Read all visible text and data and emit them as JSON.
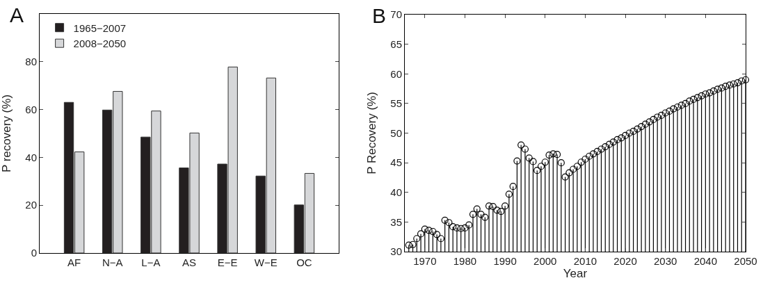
{
  "chart_data": [
    {
      "type": "bar",
      "annotations": [
        "A"
      ],
      "ylabel": "P recovery (%)",
      "categories": [
        "AF",
        "N−A",
        "L−A",
        "AS",
        "E−E",
        "W−E",
        "OC"
      ],
      "series": [
        {
          "name": "1965−2007",
          "color": "#231f20",
          "values": [
            63.0,
            59.8,
            48.5,
            35.6,
            37.2,
            32.2,
            20.1
          ]
        },
        {
          "name": "2008−2050",
          "color": "#d6d7d9",
          "values": [
            42.3,
            67.6,
            59.4,
            50.2,
            77.8,
            73.2,
            33.3
          ]
        }
      ],
      "ylim": [
        0,
        100
      ],
      "yticks": [
        0,
        20,
        40,
        60,
        80
      ],
      "grid": false,
      "legend": "top left"
    },
    {
      "type": "lollipop",
      "annotations": [
        "B"
      ],
      "xlabel": "Year",
      "ylabel": "P Recovery (%)",
      "x": [
        1966,
        1967,
        1968,
        1969,
        1970,
        1971,
        1972,
        1973,
        1974,
        1975,
        1976,
        1977,
        1978,
        1979,
        1980,
        1981,
        1982,
        1983,
        1984,
        1985,
        1986,
        1987,
        1988,
        1989,
        1990,
        1991,
        1992,
        1993,
        1994,
        1995,
        1996,
        1997,
        1998,
        1999,
        2000,
        2001,
        2002,
        2003,
        2004,
        2005,
        2006,
        2007,
        2008,
        2009,
        2010,
        2011,
        2012,
        2013,
        2014,
        2015,
        2016,
        2017,
        2018,
        2019,
        2020,
        2021,
        2022,
        2023,
        2024,
        2025,
        2026,
        2027,
        2028,
        2029,
        2030,
        2031,
        2032,
        2033,
        2034,
        2035,
        2036,
        2037,
        2038,
        2039,
        2040,
        2041,
        2042,
        2043,
        2044,
        2045,
        2046,
        2047,
        2048,
        2049,
        2050
      ],
      "series": [
        {
          "color": "#000000",
          "values": [
            31.1,
            31.2,
            32.2,
            33.0,
            33.8,
            33.6,
            33.4,
            32.9,
            32.2,
            35.3,
            34.9,
            34.2,
            34.0,
            33.9,
            34.0,
            34.5,
            36.3,
            37.2,
            36.3,
            35.8,
            37.7,
            37.6,
            37.0,
            36.8,
            37.7,
            39.7,
            41.0,
            45.3,
            48.0,
            47.3,
            45.8,
            45.2,
            43.7,
            44.4,
            45.1,
            46.3,
            46.5,
            46.4,
            45.0,
            42.6,
            43.3,
            43.9,
            44.4,
            45.1,
            45.6,
            46.1,
            46.5,
            46.9,
            47.3,
            47.7,
            48.1,
            48.5,
            48.9,
            49.2,
            49.6,
            50.0,
            50.3,
            50.7,
            51.1,
            51.5,
            51.9,
            52.3,
            52.7,
            53.0,
            53.4,
            53.7,
            54.1,
            54.4,
            54.7,
            55.0,
            55.4,
            55.7,
            56.0,
            56.3,
            56.6,
            56.8,
            57.1,
            57.4,
            57.6,
            57.9,
            58.1,
            58.3,
            58.5,
            58.8,
            59.0
          ]
        }
      ],
      "xlim": [
        1965,
        2050
      ],
      "xticks": [
        1970,
        1980,
        1990,
        2000,
        2010,
        2020,
        2030,
        2040,
        2050
      ],
      "ylim": [
        30,
        70
      ],
      "yticks": [
        30,
        35,
        40,
        45,
        50,
        55,
        60,
        65,
        70
      ],
      "grid": false,
      "marker": "circle",
      "legend": false
    }
  ]
}
